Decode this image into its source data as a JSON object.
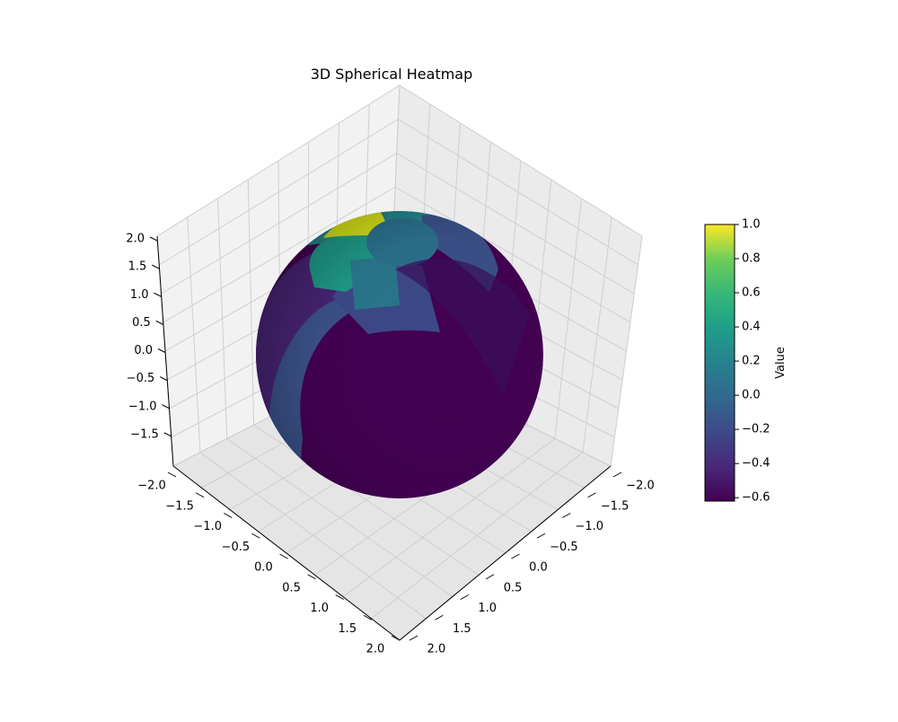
{
  "chart_data": {
    "type": "heatmap",
    "subtype": "3d-surface-sphere",
    "title": "3D Spherical Heatmap",
    "axes": {
      "x": {
        "range": [
          -2.0,
          2.0
        ],
        "ticks": [
          "−2.0",
          "−1.5",
          "−1.0",
          "−0.5",
          "0.0",
          "0.5",
          "1.0",
          "1.5",
          "2.0"
        ]
      },
      "y": {
        "range": [
          -2.0,
          2.0
        ],
        "ticks": [
          "−2.0",
          "−1.5",
          "−1.0",
          "−0.5",
          "0.0",
          "0.5",
          "1.0",
          "1.5",
          "2.0"
        ]
      },
      "z": {
        "range": [
          -2.0,
          2.0
        ],
        "ticks": [
          "−1.5",
          "−1.0",
          "−0.5",
          "0.0",
          "0.5",
          "1.0",
          "1.5",
          "2.0"
        ]
      }
    },
    "grid": true,
    "colormap": "viridis",
    "colorbar": {
      "label": "Value",
      "range": [
        -0.62,
        1.0
      ],
      "ticks": [
        "1.0",
        "0.8",
        "0.6",
        "0.4",
        "0.2",
        "0.0",
        "−0.2",
        "−0.4",
        "−0.6"
      ],
      "tick_values": [
        1.0,
        0.8,
        0.6,
        0.4,
        0.2,
        0.0,
        -0.2,
        -0.4,
        -0.6
      ],
      "placement": "right"
    },
    "sphere": {
      "radius": 1.0,
      "dominant_value": -0.6,
      "patches": [
        {
          "name": "top-yellow",
          "value": 1.0
        },
        {
          "name": "upper-green",
          "value": 0.3
        },
        {
          "name": "top-teal",
          "value": 0.1
        },
        {
          "name": "top-cap",
          "value": -0.05
        },
        {
          "name": "mid-blue",
          "value": -0.15
        },
        {
          "name": "left-band",
          "value": -0.25
        },
        {
          "name": "left-purple",
          "value": -0.45
        },
        {
          "name": "body",
          "value": -0.6
        }
      ]
    }
  }
}
